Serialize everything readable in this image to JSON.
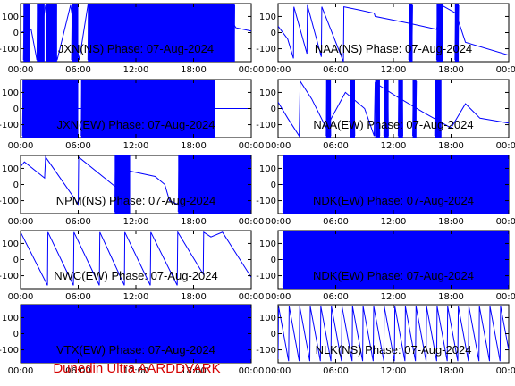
{
  "footer": {
    "credit": "Dunedin Ultra AARDDVARK"
  },
  "colors": {
    "trace": "#0000ff",
    "credit": "#d40000",
    "axis": "#000000"
  },
  "chart_data": [
    {
      "type": "line",
      "title": "JXN(NS) Phase: 07-Aug-2024",
      "x_tick_labels": [
        "00:00",
        "06:00",
        "12:00",
        "18:00",
        "00:00"
      ],
      "y_tick_labels": [
        "100",
        "0",
        "-100"
      ],
      "xlim_hours": [
        0,
        24
      ],
      "ylim": [
        -180,
        180
      ],
      "series": [
        {
          "x": [
            0,
            1.1,
            1.7,
            2.6,
            3.8,
            5.2,
            6.1,
            7.0,
            10.0,
            14.0,
            18.0,
            21.0,
            22.4,
            24.0
          ],
          "y": [
            0,
            20,
            -170,
            170,
            -170,
            170,
            -170,
            170,
            -170,
            170,
            -170,
            170,
            30,
            10
          ]
        }
      ],
      "wrap_bands": [
        [
          0.3,
          1.0
        ],
        [
          1.7,
          2.5
        ],
        [
          2.7,
          3.8
        ],
        [
          5.3,
          6.0
        ],
        [
          7.0,
          22.3
        ]
      ]
    },
    {
      "type": "line",
      "title": "NAA(NS) Phase: 07-Aug-2024",
      "x_tick_labels": [
        "00:00",
        "06:00",
        "12:00",
        "18:00",
        "00:00"
      ],
      "y_tick_labels": [
        "100",
        "0",
        "-100"
      ],
      "xlim_hours": [
        0,
        24
      ],
      "ylim": [
        -180,
        180
      ],
      "series": [
        {
          "x": [
            0,
            1.0,
            1.6,
            1.65,
            3.0,
            3.05,
            4.5,
            4.55,
            6.8,
            6.85,
            8.5,
            10.0,
            10.1,
            13.5,
            16.5,
            17.0,
            18.5,
            19.5,
            24.0
          ],
          "y": [
            40,
            -40,
            -160,
            160,
            -130,
            170,
            -150,
            160,
            -180,
            160,
            140,
            120,
            100,
            60,
            20,
            170,
            120,
            -60,
            -140
          ]
        }
      ],
      "wrap_bands": [
        [
          13.6,
          14.0
        ],
        [
          16.5,
          17.2
        ],
        [
          18.4,
          18.8
        ]
      ]
    },
    {
      "type": "line",
      "title": "JXN(EW) Phase: 07-Aug-2024",
      "x_tick_labels": [
        "00:00",
        "06:00",
        "12:00",
        "18:00",
        "00:00"
      ],
      "y_tick_labels": [
        "100",
        "0",
        "-100"
      ],
      "xlim_hours": [
        0,
        24
      ],
      "ylim": [
        -180,
        180
      ],
      "series": [
        {
          "x": [
            0,
            24.0
          ],
          "y": [
            0,
            0
          ]
        }
      ],
      "wrap_bands": [
        [
          0.2,
          6.0
        ],
        [
          6.3,
          20.2
        ]
      ]
    },
    {
      "type": "line",
      "title": "NAA(EW) Phase: 07-Aug-2024",
      "x_tick_labels": [
        "00:00",
        "06:00",
        "12:00",
        "18:00",
        "00:00"
      ],
      "y_tick_labels": [
        "100",
        "0",
        "-100"
      ],
      "xlim_hours": [
        0,
        24
      ],
      "ylim": [
        -180,
        180
      ],
      "series": [
        {
          "x": [
            0,
            1.0,
            2.2,
            2.3,
            3.5,
            5.0,
            7.0,
            9.0,
            10.0,
            10.1,
            12.2,
            15.0,
            18.0,
            19.5,
            21.0,
            24.0
          ],
          "y": [
            40,
            -60,
            -170,
            170,
            60,
            -120,
            100,
            0,
            -170,
            160,
            80,
            -20,
            -120,
            30,
            -60,
            -90
          ]
        }
      ],
      "wrap_bands": [
        [
          5.0,
          5.5
        ],
        [
          7.5,
          8.0
        ],
        [
          10.1,
          10.6
        ],
        [
          11.0,
          11.5
        ],
        [
          12.5,
          13.0
        ],
        [
          14.0,
          14.4
        ],
        [
          16.3,
          17.0
        ]
      ]
    },
    {
      "type": "line",
      "title": "NPM(NS) Phase: 07-Aug-2024",
      "x_tick_labels": [
        "00:00",
        "06:00",
        "12:00",
        "18:00",
        "00:00"
      ],
      "y_tick_labels": [
        "100",
        "0",
        "-100"
      ],
      "xlim_hours": [
        0,
        24
      ],
      "ylim": [
        -180,
        180
      ],
      "series": [
        {
          "x": [
            0,
            0.4,
            2.5,
            2.6,
            6.0,
            6.05,
            10.0,
            10.05,
            14.0,
            15.0,
            15.5,
            17.0,
            24.0
          ],
          "y": [
            110,
            140,
            40,
            170,
            -120,
            170,
            -20,
            100,
            50,
            0,
            -100,
            -140,
            -100
          ]
        }
      ],
      "wrap_bands": [
        [
          9.8,
          11.4
        ],
        [
          16.4,
          24.0
        ]
      ]
    },
    {
      "type": "line",
      "title": "NDK(EW) Phase: 07-Aug-2024",
      "x_tick_labels": [
        "00:00",
        "06:00",
        "12:00",
        "18:00",
        "00:00"
      ],
      "y_tick_labels": [
        "100",
        "0",
        "-100"
      ],
      "xlim_hours": [
        0,
        24
      ],
      "ylim": [
        -180,
        180
      ],
      "series": [
        {
          "x": [
            0,
            24.0
          ],
          "y": [
            0,
            0
          ]
        }
      ],
      "wrap_bands": [
        [
          0.5,
          24.0
        ]
      ]
    },
    {
      "type": "line",
      "title": "NWC(EW) Phase: 07-Aug-2024",
      "x_tick_labels": [
        "00:00",
        "06:00",
        "12:00",
        "18:00",
        "00:00"
      ],
      "y_tick_labels": [
        "100",
        "0",
        "-100"
      ],
      "xlim_hours": [
        0,
        24
      ],
      "ylim": [
        -180,
        180
      ],
      "series": [
        {
          "x": [
            0,
            2.8,
            2.85,
            5.5,
            5.55,
            8.2,
            8.25,
            10.8,
            10.85,
            13.5,
            13.55,
            16.3,
            16.35,
            19.0,
            19.05,
            19.8,
            21.0,
            24.0
          ],
          "y": [
            170,
            -160,
            170,
            -160,
            170,
            -160,
            170,
            -160,
            170,
            -160,
            170,
            -160,
            170,
            -90,
            170,
            140,
            170,
            -110
          ]
        }
      ],
      "wrap_bands": []
    },
    {
      "type": "line",
      "title": "NDK(EW) Phase: 07-Aug-2024",
      "x_tick_labels": [
        "00:00",
        "06:00",
        "12:00",
        "18:00",
        "00:00"
      ],
      "y_tick_labels": [
        "100",
        "0",
        "-100"
      ],
      "xlim_hours": [
        0,
        24
      ],
      "ylim": [
        -180,
        180
      ],
      "series": [
        {
          "x": [
            0,
            24.0
          ],
          "y": [
            0,
            0
          ]
        }
      ],
      "wrap_bands": [
        [
          0.5,
          24.0
        ]
      ]
    },
    {
      "type": "line",
      "title": "VTX(EW) Phase: 07-Aug-2024",
      "x_tick_labels": [
        "00:00",
        "06:00",
        "12:00",
        "18:00",
        "00:00"
      ],
      "y_tick_labels": [
        "100",
        "0",
        "-100"
      ],
      "xlim_hours": [
        0,
        24
      ],
      "ylim": [
        -180,
        180
      ],
      "series": [
        {
          "x": [
            0,
            24.0
          ],
          "y": [
            0,
            0
          ]
        }
      ],
      "wrap_bands": [
        [
          0.0,
          24.0
        ]
      ]
    },
    {
      "type": "line",
      "title": "NLK(NS) Phase: 07-Aug-2024",
      "x_tick_labels": [
        "00:00",
        "06:00",
        "12:00",
        "18:00",
        "00:00"
      ],
      "y_tick_labels": [
        "100",
        "0",
        "-100"
      ],
      "xlim_hours": [
        0,
        24
      ],
      "ylim": [
        -180,
        180
      ],
      "series": [
        {
          "x": [
            0,
            0.05,
            1.1,
            1.15,
            2.2,
            2.25,
            3.3,
            3.35,
            4.4,
            4.45,
            5.5,
            5.55,
            6.6,
            6.65,
            7.7,
            7.75,
            8.8,
            8.85,
            9.9,
            9.95,
            11.0,
            11.05,
            12.1,
            12.15,
            13.2,
            13.25,
            14.3,
            14.35,
            15.4,
            15.45,
            16.5,
            16.55,
            17.6,
            17.65,
            18.7,
            18.75,
            19.8,
            19.85,
            20.9,
            20.95,
            22.0,
            22.05,
            23.1,
            23.15,
            24.0
          ],
          "y": [
            -170,
            170,
            -170,
            170,
            -170,
            170,
            -170,
            170,
            -170,
            170,
            -170,
            170,
            -170,
            170,
            -170,
            170,
            -170,
            170,
            -170,
            170,
            -170,
            170,
            -170,
            170,
            -170,
            170,
            -170,
            170,
            -170,
            170,
            -170,
            170,
            -170,
            170,
            -170,
            170,
            -170,
            170,
            -170,
            170,
            -170,
            170,
            -170,
            170,
            -100
          ]
        }
      ],
      "wrap_bands": []
    }
  ]
}
